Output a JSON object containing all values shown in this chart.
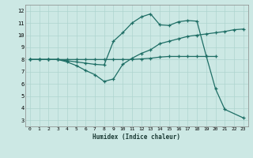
{
  "xlabel": "Humidex (Indice chaleur)",
  "xlim": [
    -0.5,
    23.5
  ],
  "ylim": [
    2.5,
    12.5
  ],
  "xticks": [
    0,
    1,
    2,
    3,
    4,
    5,
    6,
    7,
    8,
    9,
    10,
    11,
    12,
    13,
    14,
    15,
    16,
    17,
    18,
    19,
    20,
    21,
    22,
    23
  ],
  "yticks": [
    3,
    4,
    5,
    6,
    7,
    8,
    9,
    10,
    11,
    12
  ],
  "bg_color": "#cce8e4",
  "line_color": "#1e6e65",
  "grid_color": "#aed4cf",
  "line1_x": [
    0,
    1,
    2,
    3,
    4,
    5,
    6,
    7,
    8,
    9,
    10,
    11,
    12,
    13,
    14,
    15,
    16,
    17,
    18,
    19,
    20,
    21,
    22,
    23
  ],
  "line1_y": [
    8,
    8,
    8,
    8,
    7.8,
    7.5,
    7.1,
    6.75,
    6.2,
    6.4,
    7.6,
    8.1,
    8.5,
    8.8,
    9.3,
    9.5,
    9.7,
    9.9,
    10.0,
    10.1,
    10.2,
    10.3,
    10.45,
    10.5
  ],
  "line2_x": [
    0,
    1,
    2,
    3,
    4,
    5,
    6,
    7,
    8,
    9,
    10,
    11,
    12,
    13,
    14,
    15,
    16,
    17,
    18,
    19,
    20,
    21,
    23
  ],
  "line2_y": [
    8,
    8,
    8,
    8,
    7.9,
    7.8,
    7.7,
    7.6,
    7.55,
    9.5,
    10.2,
    11.0,
    11.5,
    11.75,
    10.85,
    10.8,
    11.1,
    11.2,
    11.15,
    8.3,
    5.6,
    3.9,
    3.2
  ],
  "line3_x": [
    0,
    1,
    2,
    3,
    4,
    5,
    6,
    7,
    8,
    9,
    10,
    11,
    12,
    13,
    14,
    15,
    16,
    17,
    18,
    19,
    20
  ],
  "line3_y": [
    8,
    8,
    8,
    8,
    8,
    8,
    8,
    8,
    8,
    8,
    8.0,
    8.0,
    8.05,
    8.1,
    8.2,
    8.25,
    8.25,
    8.25,
    8.25,
    8.25,
    8.25
  ]
}
